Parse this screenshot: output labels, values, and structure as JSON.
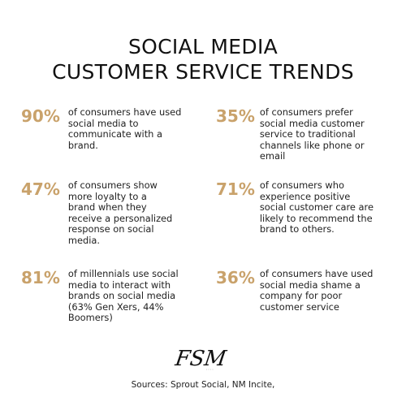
{
  "title": {
    "line1": "SOCIAL MEDIA",
    "line2": "CUSTOMER SERVICE TRENDS"
  },
  "stats": [
    {
      "value": "90%",
      "text": "of consumers have used social media to communicate with a brand."
    },
    {
      "value": "35%",
      "text": "of consumers prefer social media customer service to traditional channels like phone or email"
    },
    {
      "value": "47%",
      "text": "of consumers show more loyalty to a brand when they receive a personalized response on social media."
    },
    {
      "value": "71%",
      "text": "of consumers who experience positive social customer care are likely to recommend the brand to others."
    },
    {
      "value": "81%",
      "text": "of millennials use social media to interact with brands on social media (63% Gen Xers, 44% Boomers)"
    },
    {
      "value": "36%",
      "text": "of consumers have used social media shame a company for poor customer service"
    }
  ],
  "logo": {
    "text": "FSM"
  },
  "sources": "Sources: Sprout Social, NM Incite,",
  "colors": {
    "accent": "#c9a26b",
    "text": "#222222",
    "background": "#ffffff"
  }
}
